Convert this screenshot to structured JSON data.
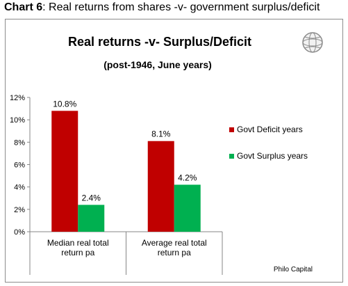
{
  "caption": {
    "prefix": "Chart 6",
    "text": ": Real returns from shares -v- government surplus/deficit"
  },
  "logo": {
    "icon": "globe-logo-icon"
  },
  "source": "Philo Capital",
  "chart_data": {
    "type": "bar",
    "title": "Real returns -v- Surplus/Deficit",
    "subtitle": "(post-1946,  June years)",
    "categories": [
      [
        "Median real total",
        "return pa"
      ],
      [
        "Average real total",
        "return pa"
      ]
    ],
    "series": [
      {
        "name": "Govt Deficit years",
        "values": [
          10.8,
          8.1
        ],
        "labels": [
          "10.8%",
          "8.1%"
        ],
        "color": "#c00000"
      },
      {
        "name": "Govt Surplus years",
        "values": [
          2.4,
          4.2
        ],
        "labels": [
          "2.4%",
          "4.2%"
        ],
        "color": "#00b050"
      }
    ],
    "ylim": [
      0,
      12
    ],
    "yticks": [
      0,
      2,
      4,
      6,
      8,
      10,
      12
    ],
    "ytick_labels": [
      "0%",
      "2%",
      "4%",
      "6%",
      "8%",
      "10%",
      "12%"
    ],
    "legend_position": "right",
    "grid": false
  }
}
